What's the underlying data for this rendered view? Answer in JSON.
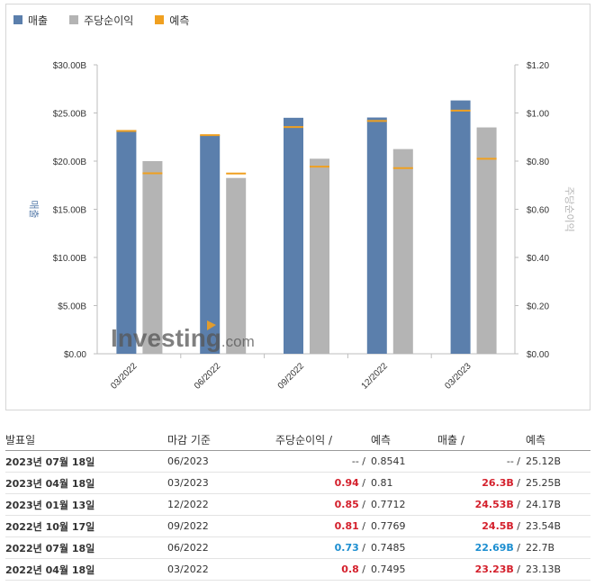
{
  "legend": {
    "revenue": "매출",
    "eps": "주당순이익",
    "forecast": "예측"
  },
  "colors": {
    "revenue": "#5b7fac",
    "eps": "#b4b4b4",
    "forecast": "#f0a020"
  },
  "watermark": {
    "brand": "Investing",
    "suffix": ".com"
  },
  "chart_data": {
    "type": "bar",
    "categories": [
      "03/2022",
      "06/2022",
      "09/2022",
      "12/2022",
      "03/2023"
    ],
    "series": [
      {
        "name": "매출",
        "axis": "left",
        "values": [
          23.23,
          22.69,
          24.5,
          24.53,
          26.3
        ],
        "forecast": [
          23.13,
          22.7,
          23.54,
          24.17,
          25.25
        ]
      },
      {
        "name": "주당순이익",
        "axis": "right",
        "values": [
          0.8,
          0.73,
          0.81,
          0.85,
          0.94
        ],
        "forecast": [
          0.7495,
          0.7485,
          0.7769,
          0.7712,
          0.81
        ]
      }
    ],
    "ylabel": "매출",
    "y2label": "주당순이익",
    "ylim": [
      0,
      30
    ],
    "y2lim": [
      0,
      1.2
    ],
    "yticks": [
      "$0.00",
      "$5.00B",
      "$10.00B",
      "$15.00B",
      "$20.00B",
      "$25.00B",
      "$30.00B"
    ],
    "y2ticks": [
      "$0.00",
      "$0.20",
      "$0.40",
      "$0.60",
      "$0.80",
      "$1.00",
      "$1.20"
    ],
    "legend_position": "top-left"
  },
  "table": {
    "headers": {
      "date": "발표일",
      "period": "마감 기준",
      "eps": "주당순이익",
      "eps_sep": "/",
      "eps_forecast": "예측",
      "revenue": "매출",
      "revenue_sep": "/",
      "revenue_forecast": "예측"
    },
    "rows": [
      {
        "date": "2023년 07월 18일",
        "period": "06/2023",
        "eps": "--",
        "eps_trend": "na",
        "eps_forecast": "0.8541",
        "revenue": "--",
        "revenue_trend": "na",
        "revenue_forecast": "25.12B"
      },
      {
        "date": "2023년 04월 18일",
        "period": "03/2023",
        "eps": "0.94",
        "eps_trend": "up",
        "eps_forecast": "0.81",
        "revenue": "26.3B",
        "revenue_trend": "up",
        "revenue_forecast": "25.25B"
      },
      {
        "date": "2023년 01월 13일",
        "period": "12/2022",
        "eps": "0.85",
        "eps_trend": "up",
        "eps_forecast": "0.7712",
        "revenue": "24.53B",
        "revenue_trend": "up",
        "revenue_forecast": "24.17B"
      },
      {
        "date": "2022년 10월 17일",
        "period": "09/2022",
        "eps": "0.81",
        "eps_trend": "up",
        "eps_forecast": "0.7769",
        "revenue": "24.5B",
        "revenue_trend": "up",
        "revenue_forecast": "23.54B"
      },
      {
        "date": "2022년 07월 18일",
        "period": "06/2022",
        "eps": "0.73",
        "eps_trend": "down",
        "eps_forecast": "0.7485",
        "revenue": "22.69B",
        "revenue_trend": "down",
        "revenue_forecast": "22.7B"
      },
      {
        "date": "2022년 04월 18일",
        "period": "03/2022",
        "eps": "0.8",
        "eps_trend": "up",
        "eps_forecast": "0.7495",
        "revenue": "23.23B",
        "revenue_trend": "up",
        "revenue_forecast": "23.13B"
      }
    ]
  }
}
